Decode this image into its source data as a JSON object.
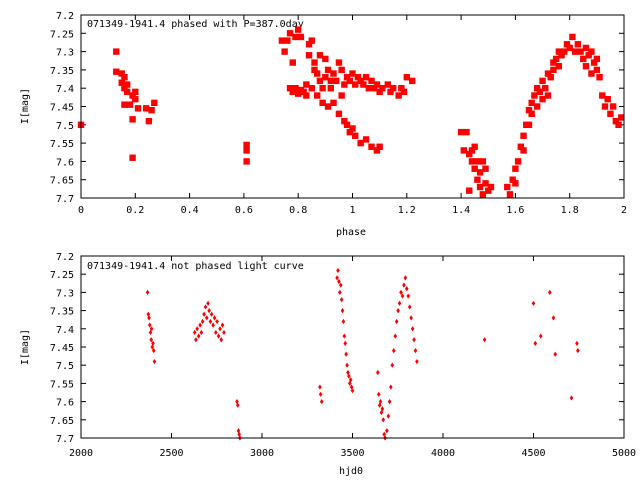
{
  "chart_data": [
    {
      "type": "scatter",
      "title": "071349-1941.4 phased with P=387.0day",
      "xlabel": "phase",
      "ylabel": "I[mag]",
      "xlim": [
        0,
        2
      ],
      "ylim": [
        7.2,
        7.7
      ],
      "y_inverted": true,
      "x_ticks": [
        "0",
        "0.2",
        "0.4",
        "0.6",
        "0.8",
        "1",
        "1.2",
        "1.4",
        "1.6",
        "1.8",
        "2"
      ],
      "x_tick_values": [
        0,
        0.2,
        0.4,
        0.6,
        0.8,
        1.0,
        1.2,
        1.4,
        1.6,
        1.8,
        2.0
      ],
      "y_ticks": [
        "7.2",
        "7.25",
        "7.3",
        "7.35",
        "7.4",
        "7.45",
        "7.5",
        "7.55",
        "7.6",
        "7.65",
        "7.7"
      ],
      "y_tick_values": [
        7.2,
        7.25,
        7.3,
        7.35,
        7.4,
        7.45,
        7.5,
        7.55,
        7.6,
        7.65,
        7.7
      ],
      "marker": "filled-square",
      "color": "#ff0000",
      "points": [
        [
          0.0,
          7.5
        ],
        [
          0.13,
          7.3
        ],
        [
          0.13,
          7.355
        ],
        [
          0.15,
          7.36
        ],
        [
          0.15,
          7.385
        ],
        [
          0.16,
          7.37
        ],
        [
          0.16,
          7.4
        ],
        [
          0.17,
          7.39
        ],
        [
          0.17,
          7.41
        ],
        [
          0.16,
          7.445
        ],
        [
          0.18,
          7.445
        ],
        [
          0.19,
          7.42
        ],
        [
          0.2,
          7.41
        ],
        [
          0.2,
          7.43
        ],
        [
          0.21,
          7.455
        ],
        [
          0.19,
          7.485
        ],
        [
          0.19,
          7.59
        ],
        [
          0.24,
          7.455
        ],
        [
          0.25,
          7.49
        ],
        [
          0.26,
          7.46
        ],
        [
          0.27,
          7.44
        ],
        [
          0.61,
          7.555
        ],
        [
          0.61,
          7.57
        ],
        [
          0.61,
          7.6
        ],
        [
          0.74,
          7.27
        ],
        [
          0.75,
          7.3
        ],
        [
          0.76,
          7.27
        ],
        [
          0.77,
          7.25
        ],
        [
          0.78,
          7.33
        ],
        [
          0.79,
          7.26
        ],
        [
          0.8,
          7.24
        ],
        [
          0.81,
          7.26
        ],
        [
          0.77,
          7.4
        ],
        [
          0.78,
          7.41
        ],
        [
          0.79,
          7.4
        ],
        [
          0.8,
          7.415
        ],
        [
          0.81,
          7.405
        ],
        [
          0.82,
          7.41
        ],
        [
          0.83,
          7.39
        ],
        [
          0.83,
          7.42
        ],
        [
          0.84,
          7.28
        ],
        [
          0.84,
          7.31
        ],
        [
          0.85,
          7.27
        ],
        [
          0.85,
          7.4
        ],
        [
          0.86,
          7.35
        ],
        [
          0.86,
          7.33
        ],
        [
          0.87,
          7.36
        ],
        [
          0.87,
          7.42
        ],
        [
          0.88,
          7.31
        ],
        [
          0.88,
          7.38
        ],
        [
          0.89,
          7.4
        ],
        [
          0.89,
          7.44
        ],
        [
          0.9,
          7.32
        ],
        [
          0.9,
          7.37
        ],
        [
          0.91,
          7.35
        ],
        [
          0.91,
          7.45
        ],
        [
          0.92,
          7.38
        ],
        [
          0.92,
          7.4
        ],
        [
          0.93,
          7.36
        ],
        [
          0.93,
          7.44
        ],
        [
          0.94,
          7.38
        ],
        [
          0.95,
          7.33
        ],
        [
          0.95,
          7.47
        ],
        [
          0.96,
          7.35
        ],
        [
          0.96,
          7.42
        ],
        [
          0.97,
          7.39
        ],
        [
          0.97,
          7.49
        ],
        [
          0.98,
          7.37
        ],
        [
          0.98,
          7.5
        ],
        [
          0.99,
          7.38
        ],
        [
          0.99,
          7.52
        ],
        [
          1.0,
          7.36
        ],
        [
          1.0,
          7.51
        ],
        [
          1.01,
          7.39
        ],
        [
          1.01,
          7.53
        ],
        [
          1.02,
          7.37
        ],
        [
          1.03,
          7.38
        ],
        [
          1.03,
          7.55
        ],
        [
          1.04,
          7.39
        ],
        [
          1.05,
          7.37
        ],
        [
          1.05,
          7.54
        ],
        [
          1.06,
          7.4
        ],
        [
          1.07,
          7.38
        ],
        [
          1.07,
          7.56
        ],
        [
          1.08,
          7.4
        ],
        [
          1.09,
          7.39
        ],
        [
          1.09,
          7.57
        ],
        [
          1.1,
          7.41
        ],
        [
          1.1,
          7.56
        ],
        [
          1.11,
          7.4
        ],
        [
          1.13,
          7.39
        ],
        [
          1.14,
          7.41
        ],
        [
          1.15,
          7.4
        ],
        [
          1.17,
          7.42
        ],
        [
          1.18,
          7.4
        ],
        [
          1.19,
          7.41
        ],
        [
          1.2,
          7.37
        ],
        [
          1.22,
          7.38
        ],
        [
          1.4,
          7.52
        ],
        [
          1.41,
          7.57
        ],
        [
          1.42,
          7.52
        ],
        [
          1.43,
          7.58
        ],
        [
          1.44,
          7.57
        ],
        [
          1.44,
          7.6
        ],
        [
          1.45,
          7.56
        ],
        [
          1.45,
          7.62
        ],
        [
          1.46,
          7.6
        ],
        [
          1.46,
          7.65
        ],
        [
          1.47,
          7.63
        ],
        [
          1.47,
          7.67
        ],
        [
          1.48,
          7.6
        ],
        [
          1.48,
          7.69
        ],
        [
          1.49,
          7.62
        ],
        [
          1.49,
          7.66
        ],
        [
          1.5,
          7.68
        ],
        [
          1.51,
          7.67
        ],
        [
          1.43,
          7.68
        ],
        [
          1.57,
          7.67
        ],
        [
          1.58,
          7.69
        ],
        [
          1.59,
          7.65
        ],
        [
          1.6,
          7.62
        ],
        [
          1.6,
          7.66
        ],
        [
          1.61,
          7.6
        ],
        [
          1.62,
          7.56
        ],
        [
          1.63,
          7.57
        ],
        [
          1.63,
          7.53
        ],
        [
          1.64,
          7.5
        ],
        [
          1.65,
          7.5
        ],
        [
          1.65,
          7.46
        ],
        [
          1.66,
          7.47
        ],
        [
          1.66,
          7.44
        ],
        [
          1.67,
          7.42
        ],
        [
          1.68,
          7.45
        ],
        [
          1.68,
          7.4
        ],
        [
          1.69,
          7.41
        ],
        [
          1.7,
          7.43
        ],
        [
          1.7,
          7.38
        ],
        [
          1.71,
          7.4
        ],
        [
          1.72,
          7.36
        ],
        [
          1.72,
          7.42
        ],
        [
          1.73,
          7.37
        ],
        [
          1.74,
          7.35
        ],
        [
          1.74,
          7.33
        ],
        [
          1.75,
          7.32
        ],
        [
          1.76,
          7.34
        ],
        [
          1.76,
          7.3
        ],
        [
          1.77,
          7.31
        ],
        [
          1.78,
          7.3
        ],
        [
          1.79,
          7.28
        ],
        [
          1.8,
          7.29
        ],
        [
          1.81,
          7.26
        ],
        [
          1.82,
          7.3
        ],
        [
          1.83,
          7.28
        ],
        [
          1.84,
          7.3
        ],
        [
          1.85,
          7.32
        ],
        [
          1.86,
          7.29
        ],
        [
          1.86,
          7.34
        ],
        [
          1.87,
          7.31
        ],
        [
          1.88,
          7.3
        ],
        [
          1.88,
          7.36
        ],
        [
          1.89,
          7.33
        ],
        [
          1.9,
          7.35
        ],
        [
          1.9,
          7.32
        ],
        [
          1.91,
          7.37
        ],
        [
          1.92,
          7.42
        ],
        [
          1.93,
          7.45
        ],
        [
          1.94,
          7.43
        ],
        [
          1.95,
          7.47
        ],
        [
          1.96,
          7.45
        ],
        [
          1.97,
          7.49
        ],
        [
          1.98,
          7.5
        ],
        [
          1.99,
          7.48
        ]
      ]
    },
    {
      "type": "scatter",
      "title": "071349-1941.4 not phased light curve",
      "xlabel": "hjd0",
      "ylabel": "I[mag]",
      "xlim": [
        2000,
        5000
      ],
      "ylim": [
        7.2,
        7.7
      ],
      "y_inverted": true,
      "x_ticks": [
        "2000",
        "2500",
        "3000",
        "3500",
        "4000",
        "4500",
        "5000"
      ],
      "x_tick_values": [
        2000,
        2500,
        3000,
        3500,
        4000,
        4500,
        5000
      ],
      "y_ticks": [
        "7.2",
        "7.25",
        "7.3",
        "7.35",
        "7.4",
        "7.45",
        "7.5",
        "7.55",
        "7.6",
        "7.65",
        "7.7"
      ],
      "y_tick_values": [
        7.2,
        7.25,
        7.3,
        7.35,
        7.4,
        7.45,
        7.5,
        7.55,
        7.6,
        7.65,
        7.7
      ],
      "marker": "small-diamond",
      "color": "#ff0000",
      "points": [
        [
          2368,
          7.3
        ],
        [
          2372,
          7.36
        ],
        [
          2376,
          7.37
        ],
        [
          2380,
          7.39
        ],
        [
          2384,
          7.41
        ],
        [
          2388,
          7.43
        ],
        [
          2390,
          7.4
        ],
        [
          2394,
          7.45
        ],
        [
          2398,
          7.44
        ],
        [
          2402,
          7.46
        ],
        [
          2406,
          7.49
        ],
        [
          2628,
          7.41
        ],
        [
          2635,
          7.43
        ],
        [
          2642,
          7.4
        ],
        [
          2650,
          7.42
        ],
        [
          2658,
          7.39
        ],
        [
          2665,
          7.41
        ],
        [
          2672,
          7.38
        ],
        [
          2680,
          7.36
        ],
        [
          2688,
          7.34
        ],
        [
          2695,
          7.37
        ],
        [
          2702,
          7.33
        ],
        [
          2708,
          7.35
        ],
        [
          2715,
          7.38
        ],
        [
          2722,
          7.36
        ],
        [
          2730,
          7.39
        ],
        [
          2738,
          7.37
        ],
        [
          2745,
          7.41
        ],
        [
          2752,
          7.38
        ],
        [
          2760,
          7.42
        ],
        [
          2768,
          7.4
        ],
        [
          2775,
          7.43
        ],
        [
          2782,
          7.39
        ],
        [
          2790,
          7.41
        ],
        [
          2862,
          7.6
        ],
        [
          2866,
          7.61
        ],
        [
          2870,
          7.68
        ],
        [
          2874,
          7.69
        ],
        [
          2878,
          7.7
        ],
        [
          3320,
          7.56
        ],
        [
          3324,
          7.58
        ],
        [
          3330,
          7.6
        ],
        [
          3415,
          7.26
        ],
        [
          3420,
          7.24
        ],
        [
          3425,
          7.27
        ],
        [
          3430,
          7.3
        ],
        [
          3435,
          7.28
        ],
        [
          3440,
          7.32
        ],
        [
          3445,
          7.35
        ],
        [
          3450,
          7.38
        ],
        [
          3455,
          7.42
        ],
        [
          3460,
          7.44
        ],
        [
          3465,
          7.47
        ],
        [
          3470,
          7.5
        ],
        [
          3475,
          7.52
        ],
        [
          3480,
          7.53
        ],
        [
          3485,
          7.55
        ],
        [
          3490,
          7.54
        ],
        [
          3495,
          7.56
        ],
        [
          3500,
          7.57
        ],
        [
          3640,
          7.52
        ],
        [
          3645,
          7.58
        ],
        [
          3650,
          7.61
        ],
        [
          3655,
          7.6
        ],
        [
          3660,
          7.63
        ],
        [
          3665,
          7.62
        ],
        [
          3670,
          7.65
        ],
        [
          3675,
          7.69
        ],
        [
          3680,
          7.7
        ],
        [
          3690,
          7.68
        ],
        [
          3698,
          7.64
        ],
        [
          3705,
          7.6
        ],
        [
          3712,
          7.56
        ],
        [
          3720,
          7.5
        ],
        [
          3728,
          7.46
        ],
        [
          3736,
          7.42
        ],
        [
          3744,
          7.38
        ],
        [
          3752,
          7.35
        ],
        [
          3760,
          7.33
        ],
        [
          3768,
          7.3
        ],
        [
          3776,
          7.31
        ],
        [
          3784,
          7.28
        ],
        [
          3792,
          7.26
        ],
        [
          3800,
          7.29
        ],
        [
          3808,
          7.31
        ],
        [
          3816,
          7.34
        ],
        [
          3824,
          7.37
        ],
        [
          3832,
          7.4
        ],
        [
          3840,
          7.43
        ],
        [
          3848,
          7.46
        ],
        [
          3856,
          7.49
        ],
        [
          4230,
          7.43
        ],
        [
          4500,
          7.33
        ],
        [
          4510,
          7.44
        ],
        [
          4540,
          7.42
        ],
        [
          4590,
          7.3
        ],
        [
          4610,
          7.37
        ],
        [
          4620,
          7.47
        ],
        [
          4710,
          7.59
        ],
        [
          4740,
          7.44
        ],
        [
          4745,
          7.46
        ]
      ]
    }
  ]
}
